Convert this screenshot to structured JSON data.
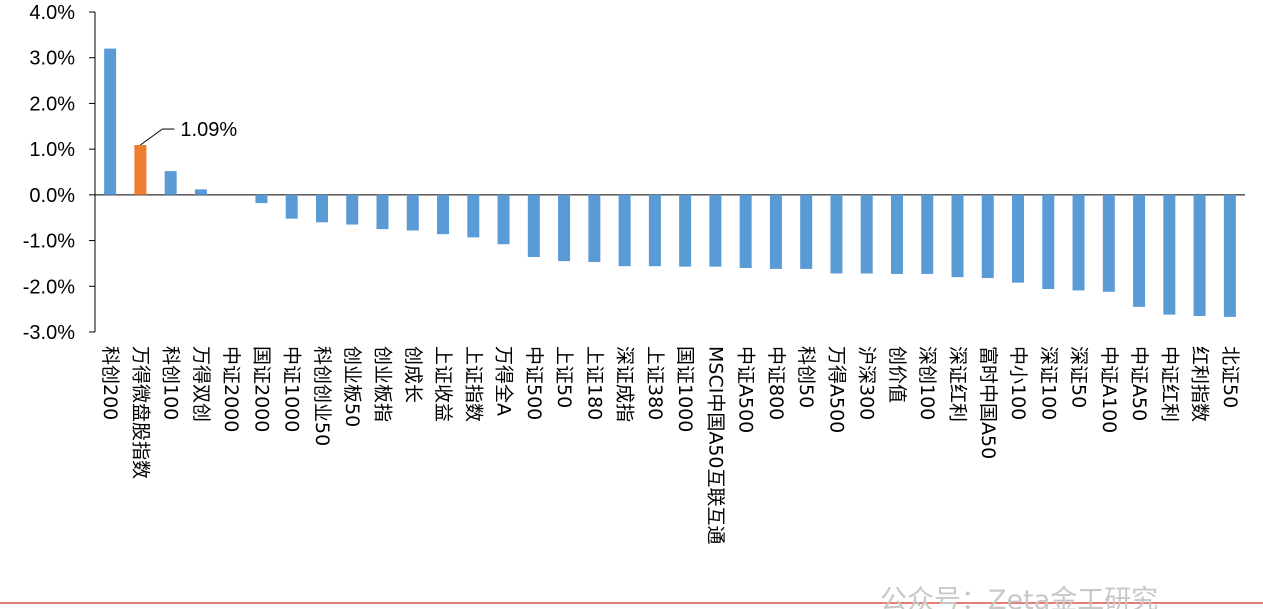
{
  "chart_data": {
    "type": "bar",
    "title": "",
    "xlabel": "",
    "ylabel": "",
    "ylim": [
      -3,
      4
    ],
    "yticks": [
      4,
      3,
      2,
      1,
      0,
      -1,
      -2,
      -3
    ],
    "ytick_labels": [
      "4.0%",
      "3.0%",
      "2.0%",
      "1.0%",
      "0.0%",
      "-1.0%",
      "-2.0%",
      "-3.0%"
    ],
    "grid": false,
    "legend": "none",
    "categories": [
      "科创200",
      "万得微盘股指数",
      "科创100",
      "万得双创",
      "中证2000",
      "国证2000",
      "中证1000",
      "科创创业50",
      "创业板50",
      "创业板指",
      "创成长",
      "上证收益",
      "上证指数",
      "万得全A",
      "中证500",
      "上证50",
      "上证180",
      "深证成指",
      "上证380",
      "国证1000",
      "MSCI中国A50互联互通",
      "中证A500",
      "中证800",
      "科创50",
      "万得A500",
      "沪深300",
      "创价值",
      "深创100",
      "深证红利",
      "富时中国A50",
      "中小100",
      "深证100",
      "深证50",
      "中证A100",
      "中证A50",
      "中证红利",
      "红利指数",
      "北证50"
    ],
    "values": [
      3.2,
      1.09,
      0.52,
      0.12,
      0.0,
      -0.18,
      -0.52,
      -0.6,
      -0.65,
      -0.75,
      -0.78,
      -0.86,
      -0.93,
      -1.08,
      -1.36,
      -1.45,
      -1.47,
      -1.56,
      -1.56,
      -1.57,
      -1.57,
      -1.6,
      -1.62,
      -1.62,
      -1.72,
      -1.72,
      -1.73,
      -1.73,
      -1.8,
      -1.82,
      -1.92,
      -2.06,
      -2.09,
      -2.12,
      -2.45,
      -2.62,
      -2.65,
      -2.67
    ],
    "highlight_index": 1,
    "highlight_label": "1.09%",
    "colors": {
      "bar": "#5b9bd5",
      "highlight": "#ed7d31",
      "axis": "#000000"
    }
  },
  "watermark": "公众号：Zeta金工研究",
  "colors": {
    "footer_line": "#d9534f"
  }
}
